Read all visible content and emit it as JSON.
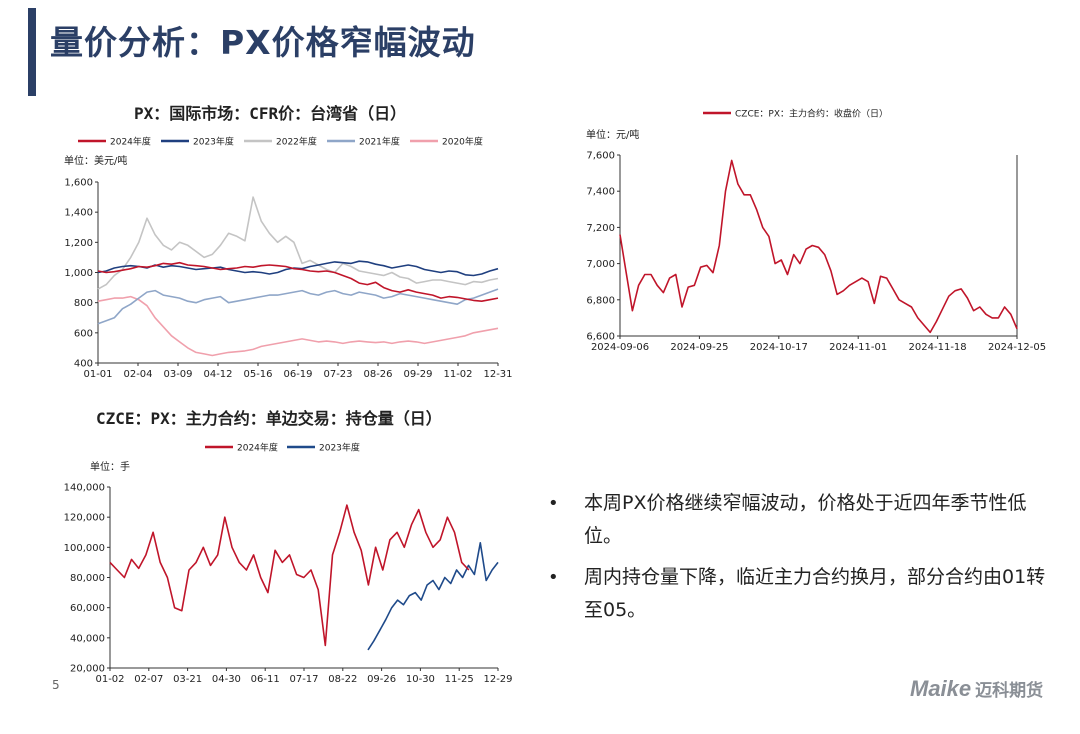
{
  "page": {
    "title": "量价分析：PX价格窄幅波动",
    "page_number": "5",
    "logo_text": "Maike",
    "logo_cn": "迈科期货"
  },
  "bullets": [
    "本周PX价格继续窄幅波动，价格处于近四年季节性低位。",
    "周内持仓量下降，临近主力合约换月，部分合约由01转至05。"
  ],
  "chart_data": [
    {
      "type": "line",
      "title": "PX：国际市场：CFR价：台湾省（日）",
      "unit": "单位：美元/吨",
      "ylim": [
        400,
        1600
      ],
      "yticks": [
        "400",
        "600",
        "800",
        "1,000",
        "1,200",
        "1,400",
        "1,600"
      ],
      "xticks": [
        "01-01",
        "02-04",
        "03-09",
        "04-12",
        "05-16",
        "06-19",
        "07-23",
        "08-26",
        "09-29",
        "11-02",
        "12-31"
      ],
      "colors": {
        "2024年度": "#c0152a",
        "2023年度": "#1f3f7f",
        "2022年度": "#c4c4c4",
        "2021年度": "#8fa6c8",
        "2020年度": "#f0a0ac"
      },
      "series": [
        {
          "name": "2024年度",
          "values": [
            1010,
            1000,
            1005,
            1015,
            1025,
            1040,
            1035,
            1045,
            1060,
            1055,
            1065,
            1050,
            1045,
            1040,
            1030,
            1020,
            1025,
            1030,
            1040,
            1035,
            1045,
            1050,
            1045,
            1040,
            1025,
            1020,
            1010,
            1005,
            1010,
            1000,
            980,
            960,
            930,
            920,
            935,
            900,
            880,
            870,
            885,
            870,
            860,
            850,
            830,
            840,
            835,
            825,
            815,
            810,
            820,
            830
          ]
        },
        {
          "name": "2023年度",
          "values": [
            1000,
            1010,
            1030,
            1040,
            1045,
            1040,
            1030,
            1050,
            1035,
            1045,
            1040,
            1030,
            1020,
            1025,
            1030,
            1035,
            1020,
            1010,
            1000,
            1005,
            1000,
            990,
            1000,
            1020,
            1030,
            1025,
            1040,
            1050,
            1060,
            1070,
            1065,
            1060,
            1075,
            1070,
            1055,
            1045,
            1030,
            1040,
            1050,
            1040,
            1020,
            1010,
            1000,
            1010,
            1005,
            985,
            980,
            990,
            1010,
            1025
          ]
        },
        {
          "name": "2022年度",
          "values": [
            890,
            920,
            980,
            1020,
            1100,
            1200,
            1360,
            1250,
            1180,
            1150,
            1200,
            1180,
            1140,
            1100,
            1120,
            1180,
            1260,
            1240,
            1210,
            1500,
            1340,
            1260,
            1200,
            1240,
            1200,
            1060,
            1080,
            1050,
            1020,
            1000,
            1060,
            1040,
            1010,
            1000,
            990,
            980,
            1000,
            970,
            960,
            930,
            940,
            950,
            950,
            940,
            930,
            920,
            940,
            935,
            950,
            960
          ]
        },
        {
          "name": "2021年度",
          "values": [
            660,
            680,
            700,
            760,
            790,
            830,
            870,
            880,
            850,
            840,
            830,
            810,
            800,
            820,
            830,
            840,
            800,
            810,
            820,
            830,
            840,
            850,
            850,
            860,
            870,
            880,
            860,
            850,
            870,
            880,
            860,
            850,
            870,
            860,
            850,
            830,
            840,
            860,
            850,
            840,
            830,
            820,
            810,
            800,
            790,
            820,
            830,
            850,
            870,
            890
          ]
        },
        {
          "name": "2020年度",
          "values": [
            810,
            820,
            830,
            830,
            840,
            820,
            780,
            700,
            640,
            580,
            540,
            500,
            470,
            460,
            450,
            460,
            470,
            475,
            480,
            490,
            510,
            520,
            530,
            540,
            550,
            560,
            550,
            540,
            545,
            540,
            530,
            540,
            545,
            540,
            535,
            540,
            530,
            540,
            545,
            540,
            530,
            540,
            550,
            560,
            570,
            580,
            600,
            610,
            620,
            630
          ]
        }
      ]
    },
    {
      "type": "line",
      "title": "CZCE：PX：主力合约：收盘价（日）",
      "legend": "CZCE：PX：主力合约：收盘价（日）",
      "unit": "单位：元/吨",
      "ylim": [
        6600,
        7600
      ],
      "yticks": [
        "6,600",
        "6,800",
        "7,000",
        "7,200",
        "7,400",
        "7,600"
      ],
      "xticks": [
        "2024-09-06",
        "2024-09-25",
        "2024-10-17",
        "2024-11-01",
        "2024-11-18",
        "2024-12-05"
      ],
      "color": "#c0152a",
      "values": [
        7160,
        6950,
        6740,
        6880,
        6940,
        6940,
        6880,
        6840,
        6920,
        6940,
        6760,
        6870,
        6880,
        6980,
        6990,
        6950,
        7100,
        7400,
        7570,
        7440,
        7380,
        7380,
        7300,
        7200,
        7150,
        7000,
        7020,
        6940,
        7050,
        7000,
        7080,
        7100,
        7090,
        7050,
        6960,
        6830,
        6850,
        6880,
        6900,
        6920,
        6900,
        6780,
        6930,
        6920,
        6860,
        6800,
        6780,
        6760,
        6700,
        6660,
        6620,
        6680,
        6750,
        6820,
        6850,
        6860,
        6810,
        6740,
        6760,
        6720,
        6700,
        6700,
        6760,
        6720,
        6640
      ]
    },
    {
      "type": "line",
      "title": "CZCE：PX：主力合约：单边交易：持仓量（日）",
      "unit": "单位：手",
      "ylim": [
        20000,
        140000
      ],
      "yticks": [
        "20,000",
        "40,000",
        "60,000",
        "80,000",
        "100,000",
        "120,000",
        "140,000"
      ],
      "xticks": [
        "01-02",
        "02-07",
        "03-21",
        "04-30",
        "06-11",
        "07-17",
        "08-22",
        "09-26",
        "10-30",
        "11-25",
        "12-29"
      ],
      "colors": {
        "2024年度": "#c0152a",
        "2023年度": "#1f4a8a"
      },
      "series": [
        {
          "name": "2024年度",
          "start": 0.0,
          "end": 0.925,
          "values": [
            90000,
            85000,
            80000,
            92000,
            86000,
            95000,
            110000,
            90000,
            80000,
            60000,
            58000,
            85000,
            90000,
            100000,
            88000,
            95000,
            120000,
            100000,
            90000,
            85000,
            95000,
            80000,
            70000,
            98000,
            90000,
            95000,
            82000,
            80000,
            85000,
            72000,
            35000,
            95000,
            110000,
            128000,
            110000,
            98000,
            75000,
            100000,
            85000,
            105000,
            110000,
            100000,
            115000,
            125000,
            110000,
            100000,
            105000,
            120000,
            110000,
            90000,
            85000
          ]
        },
        {
          "name": "2023年度",
          "start": 0.665,
          "end": 1.0,
          "values": [
            32000,
            38000,
            45000,
            52000,
            60000,
            65000,
            62000,
            68000,
            70000,
            65000,
            75000,
            78000,
            72000,
            80000,
            76000,
            85000,
            80000,
            88000,
            82000,
            103000,
            78000,
            85000,
            90000
          ]
        }
      ]
    }
  ]
}
